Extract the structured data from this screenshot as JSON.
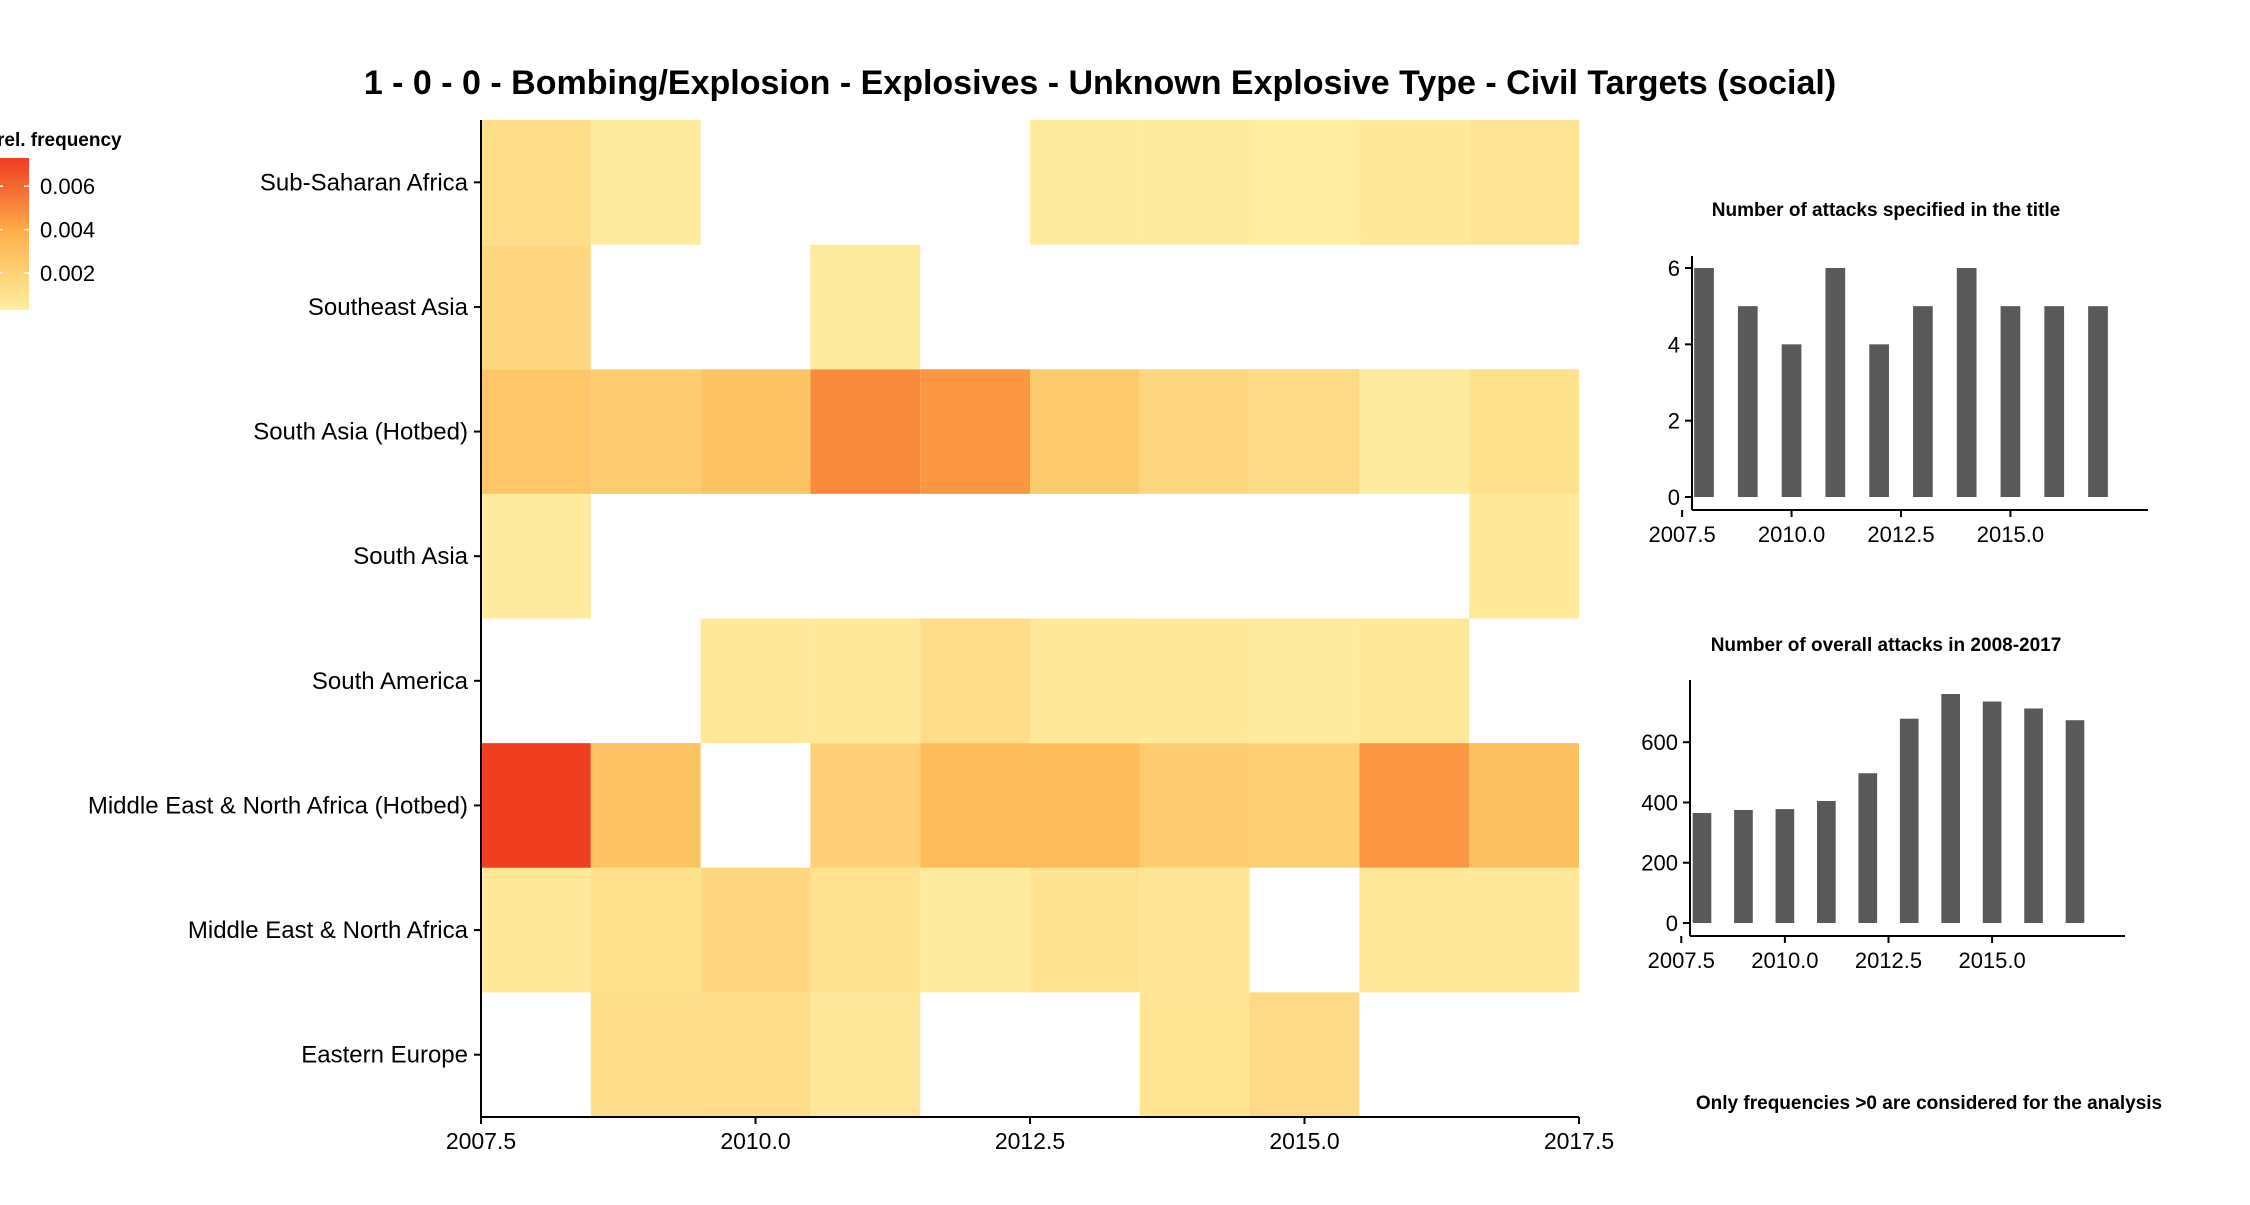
{
  "title": "1 - 0 - 0 - Bombing/Explosion - Explosives - Unknown Explosive Type - Civil Targets (social)",
  "footnote": "Only frequencies >0 are considered for the analysis",
  "colors": {
    "low": "#ffeda0",
    "mid": "#feb24c",
    "high": "#f03b20",
    "bar": "#595959",
    "axis": "#000000"
  },
  "chart_data": [
    {
      "type": "heatmap",
      "x": [
        2008,
        2009,
        2010,
        2011,
        2012,
        2013,
        2014,
        2015,
        2016,
        2017
      ],
      "categories": [
        "Eastern Europe",
        "Middle East & North Africa",
        "Middle East & North Africa (Hotbed)",
        "South America",
        "South Asia",
        "South Asia (Hotbed)",
        "Southeast Asia",
        "Sub-Saharan Africa"
      ],
      "xlim": [
        2007.5,
        2017.5
      ],
      "xticks": [
        "2007.5",
        "2010.0",
        "2012.5",
        "2015.0",
        "2017.5"
      ],
      "legend": {
        "title": "rel. frequency",
        "ticks": [
          "0.006",
          "0.004",
          "0.002"
        ],
        "range": [
          0.0003,
          0.0073
        ]
      },
      "values": [
        [
          null,
          0.0012,
          0.0013,
          0.0006,
          null,
          null,
          0.0008,
          0.0014,
          null,
          null
        ],
        [
          0.0006,
          0.0011,
          0.0016,
          0.001,
          0.0004,
          0.0009,
          0.0007,
          null,
          0.0006,
          0.0006
        ],
        [
          0.0072,
          0.0028,
          null,
          0.002,
          0.0032,
          0.0032,
          0.0023,
          0.0021,
          0.0046,
          0.0029
        ],
        [
          null,
          null,
          0.0006,
          0.0006,
          0.0013,
          0.0006,
          0.0005,
          0.0004,
          0.0006,
          null
        ],
        [
          0.0004,
          null,
          null,
          null,
          null,
          null,
          null,
          null,
          null,
          0.0005
        ],
        [
          0.0026,
          0.0023,
          0.0028,
          0.005,
          0.0046,
          0.0024,
          0.0016,
          0.0014,
          0.0004,
          0.0011
        ],
        [
          0.0016,
          null,
          null,
          0.0004,
          null,
          null,
          null,
          null,
          null,
          null
        ],
        [
          0.0012,
          0.0004,
          null,
          null,
          null,
          0.0004,
          0.0004,
          0.0003,
          0.0005,
          0.0007
        ]
      ]
    },
    {
      "type": "bar",
      "title": "Number of attacks specified in the title",
      "x": [
        2008,
        2009,
        2010,
        2011,
        2012,
        2013,
        2014,
        2015,
        2016,
        2017
      ],
      "values": [
        6,
        5,
        4,
        6,
        4,
        5,
        6,
        5,
        5,
        5
      ],
      "xticks": [
        "2007.5",
        "2010.0",
        "2012.5",
        "2015.0"
      ],
      "yticks": [
        "0",
        "2",
        "4",
        "6"
      ],
      "ylim": [
        0,
        6
      ]
    },
    {
      "type": "bar",
      "title": "Number of overall attacks in 2008-2017",
      "x": [
        2008,
        2009,
        2010,
        2011,
        2012,
        2013,
        2014,
        2015,
        2016,
        2017
      ],
      "values": [
        365,
        375,
        378,
        405,
        497,
        678,
        760,
        735,
        712,
        673
      ],
      "xticks": [
        "2007.5",
        "2010.0",
        "2012.5",
        "2015.0"
      ],
      "yticks": [
        "0",
        "200",
        "400",
        "600"
      ],
      "ylim": [
        0,
        760
      ]
    }
  ]
}
